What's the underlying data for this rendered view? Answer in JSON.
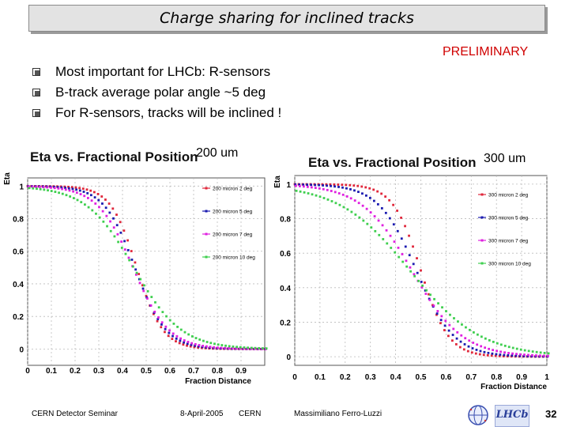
{
  "slide": {
    "title": "Charge sharing for inclined tracks",
    "preliminary": "PRELIMINARY",
    "bullets": [
      "Most important for LHCb: R-sensors",
      "B-track average polar angle ~5 deg",
      "For R-sensors, tracks will be inclined !"
    ],
    "footer": {
      "left": "CERN Detector Seminar",
      "date": "8-April-2005",
      "place": "CERN",
      "author": "Massimiliano Ferro-Luzzi",
      "page": "32",
      "logo_text": "LHCb"
    }
  },
  "colors": {
    "series": [
      "#e0263a",
      "#1b1bb0",
      "#e020e0",
      "#3fcf4f"
    ]
  },
  "chart_data": [
    {
      "type": "scatter",
      "title": "Eta vs. Fractional Position",
      "pitch_label": "200 um",
      "xlabel": "Fraction Distance",
      "ylabel": "Eta",
      "xlim": [
        0,
        1
      ],
      "ylim": [
        -0.1,
        1.05
      ],
      "xticks": [
        "0",
        "0.1",
        "0.2",
        "0.3",
        "0.4",
        "0.5",
        "0.6",
        "0.7",
        "0.8",
        "0.9"
      ],
      "yticks": [
        "0",
        "0.2",
        "0.4",
        "0.6",
        "0.8",
        "1"
      ],
      "grid": true,
      "series": [
        {
          "name": "200 micron 2 deg",
          "params": [
            0.46,
            0.055
          ]
        },
        {
          "name": "200 micron 5 deg",
          "params": [
            0.45,
            0.065
          ]
        },
        {
          "name": "200 micron 7 deg",
          "params": [
            0.44,
            0.075
          ]
        },
        {
          "name": "200 micron 10 deg",
          "params": [
            0.44,
            0.1
          ]
        }
      ]
    },
    {
      "type": "scatter",
      "title": "Eta vs. Fractional Position",
      "pitch_label": "300 um",
      "xlabel": "Fraction Distance",
      "ylabel": "Eta",
      "xlim": [
        0,
        1
      ],
      "ylim": [
        -0.05,
        1.05
      ],
      "xticks": [
        "0",
        "0.1",
        "0.2",
        "0.3",
        "0.4",
        "0.5",
        "0.6",
        "0.7",
        "0.8",
        "0.9",
        "1"
      ],
      "yticks": [
        "0",
        "0.2",
        "0.4",
        "0.6",
        "0.8",
        "1"
      ],
      "grid": true,
      "series": [
        {
          "name": "300 micron 2 deg",
          "params": [
            0.5,
            0.055
          ]
        },
        {
          "name": "300 micron 5 deg",
          "params": [
            0.48,
            0.075
          ]
        },
        {
          "name": "300 micron 7 deg",
          "params": [
            0.46,
            0.1
          ]
        },
        {
          "name": "300 micron 10 deg",
          "params": [
            0.45,
            0.14
          ]
        }
      ]
    }
  ]
}
